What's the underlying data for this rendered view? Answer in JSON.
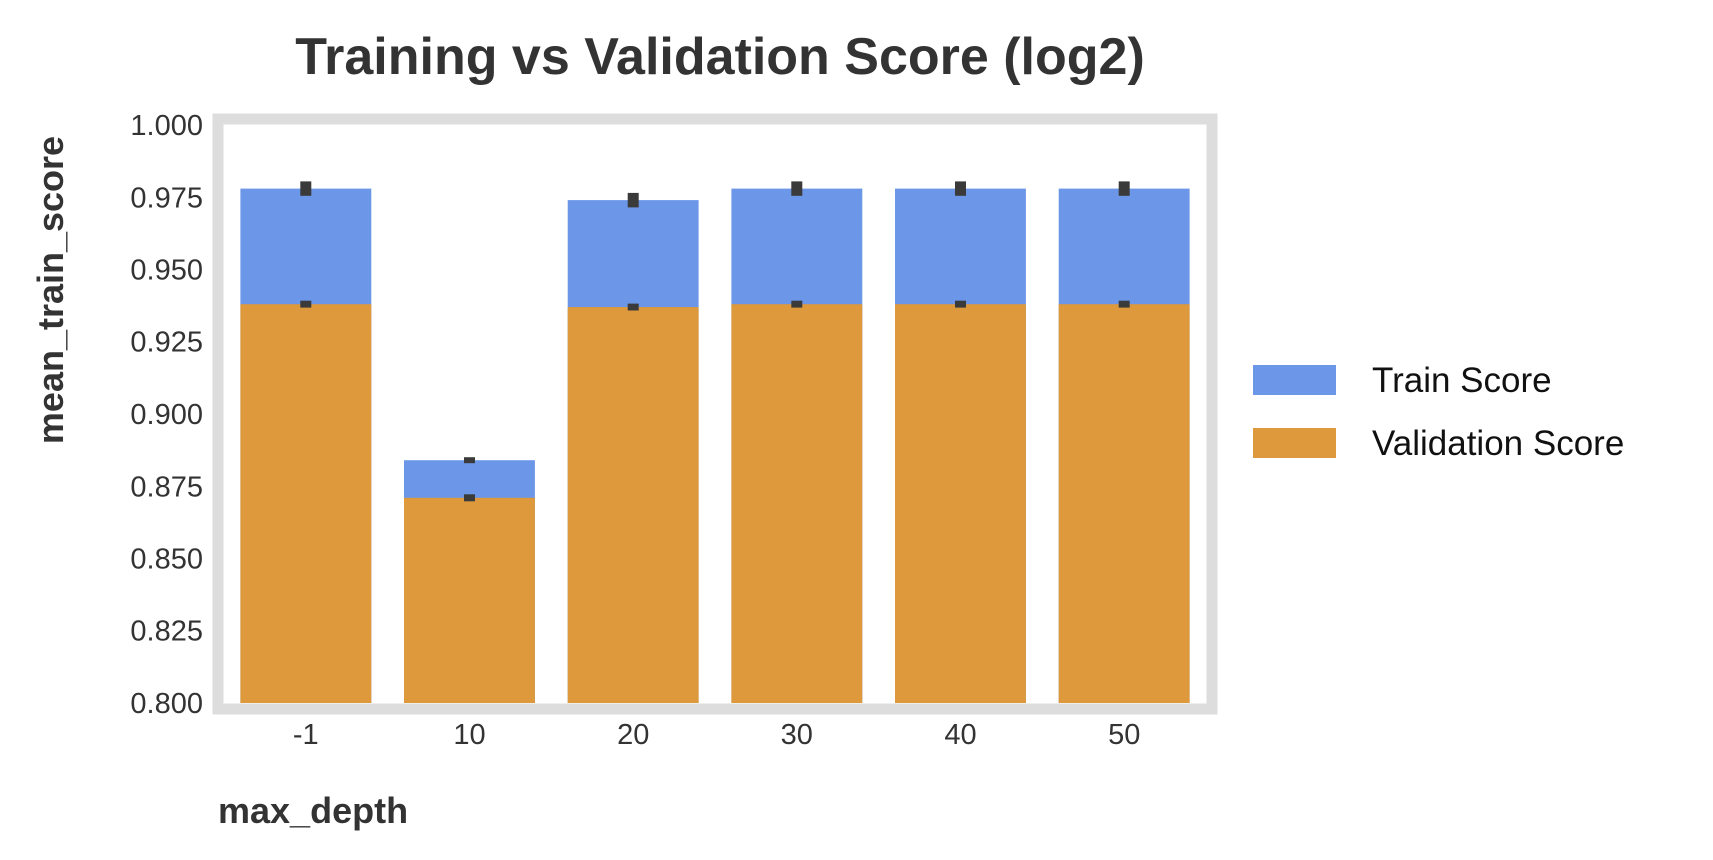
{
  "chart_data": {
    "type": "bar",
    "title": "Training vs Validation Score (log2)",
    "xlabel": "max_depth",
    "ylabel": "mean_train_score",
    "categories": [
      "-1",
      "10",
      "20",
      "30",
      "40",
      "50"
    ],
    "ylim": [
      0.8,
      1.0
    ],
    "yticks": [
      "0.800",
      "0.825",
      "0.850",
      "0.875",
      "0.900",
      "0.925",
      "0.950",
      "0.975",
      "1.000"
    ],
    "grid": false,
    "legend_position": "right",
    "series": [
      {
        "name": "Train Score",
        "color": "#6c97e8",
        "values": [
          0.978,
          0.884,
          0.974,
          0.978,
          0.978,
          0.978
        ],
        "error": [
          0.0025,
          0.0008,
          0.0025,
          0.0025,
          0.0025,
          0.0025
        ]
      },
      {
        "name": "Validation Score",
        "color": "#dd993b",
        "values": [
          0.938,
          0.871,
          0.937,
          0.938,
          0.938,
          0.938
        ],
        "error": [
          0.0012,
          0.0012,
          0.0012,
          0.0012,
          0.0012,
          0.0012
        ]
      }
    ],
    "frame_color": "#dddddd",
    "errorbar_color": "#3a3a3a"
  }
}
